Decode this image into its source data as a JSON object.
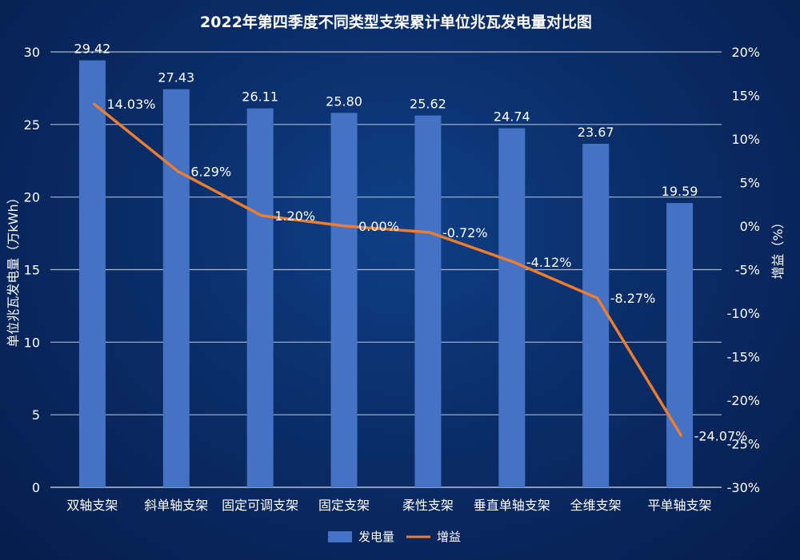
{
  "chart_data": {
    "type": "bar",
    "title": "2022年第四季度不同类型支架累计单位兆瓦发电量对比图",
    "categories": [
      "双轴支架",
      "斜单轴支架",
      "固定可调支架",
      "固定支架",
      "柔性支架",
      "垂直单轴支架",
      "全维支架",
      "平单轴支架"
    ],
    "ylabel": "单位兆瓦发电量（万kWh）",
    "y2label": "增益（%）",
    "ylim": [
      0,
      30
    ],
    "y2lim": [
      -30,
      20
    ],
    "yticks": [
      "0",
      "5",
      "10",
      "15",
      "20",
      "25",
      "30"
    ],
    "y2ticks": [
      "-30%",
      "-25%",
      "-20%",
      "-15%",
      "-10%",
      "-5%",
      "0%",
      "5%",
      "10%",
      "15%",
      "20%"
    ],
    "grid": true,
    "legend_position": "bottom",
    "series": [
      {
        "name": "发电量",
        "type": "bar",
        "axis": "left",
        "color": "#4472c4",
        "values": [
          29.42,
          27.43,
          26.11,
          25.8,
          25.62,
          24.74,
          23.67,
          19.59
        ],
        "labels": [
          "29.42",
          "27.43",
          "26.11",
          "25.80",
          "25.62",
          "24.74",
          "23.67",
          "19.59"
        ]
      },
      {
        "name": "增益",
        "type": "line",
        "axis": "right",
        "color": "#ed7d31",
        "values": [
          14.03,
          6.29,
          1.2,
          0.0,
          -0.72,
          -4.12,
          -8.27,
          -24.07
        ],
        "labels": [
          "14.03%",
          "6.29%",
          "1.20%",
          "0.00%",
          "-0.72%",
          "-4.12%",
          "-8.27%",
          "-24.07%"
        ]
      }
    ]
  }
}
